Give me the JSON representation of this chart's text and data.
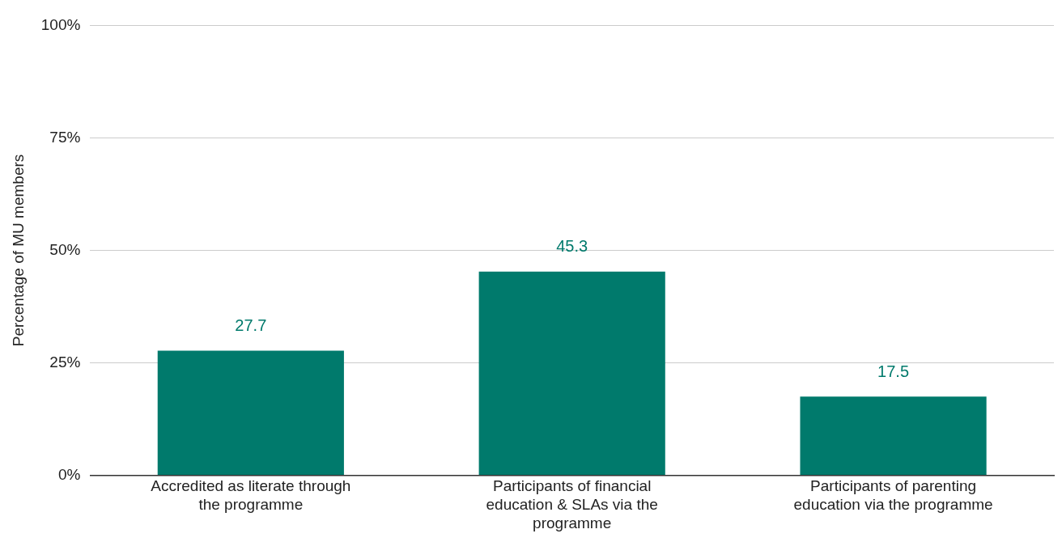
{
  "chart_data": {
    "type": "bar",
    "ylabel": "Percentage of MU members",
    "categories": [
      "Accredited as literate through the programme",
      "Participants of financial education & SLAs via the programme",
      "Participants of parenting education via the programme"
    ],
    "values": [
      27.7,
      45.3,
      17.5
    ],
    "color": "#007a6c",
    "ylim": [
      0,
      100
    ],
    "yticks": [
      {
        "value": 0,
        "label": "0%"
      },
      {
        "value": 25,
        "label": "25%"
      },
      {
        "value": 50,
        "label": "50%"
      },
      {
        "value": 75,
        "label": "75%"
      },
      {
        "value": 100,
        "label": "100%"
      }
    ],
    "grid": "y",
    "legend": false,
    "data_labels": true
  }
}
